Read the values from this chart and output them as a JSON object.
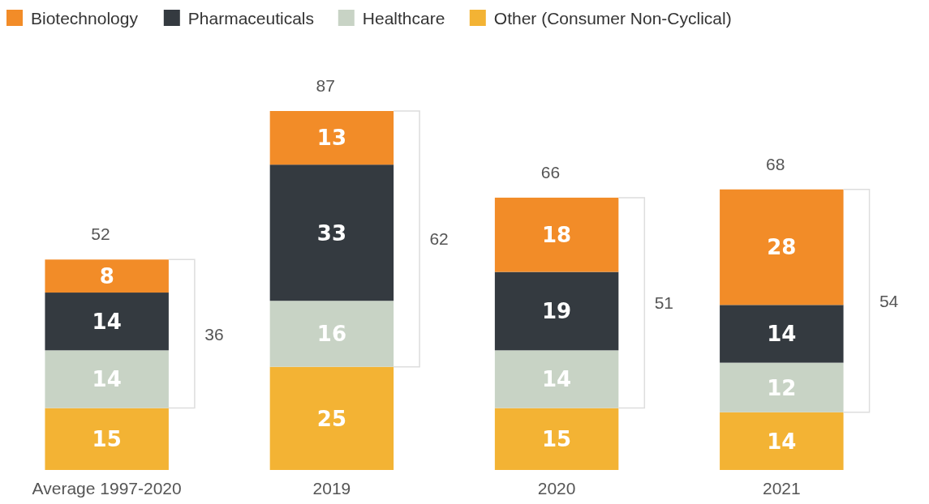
{
  "chart_data": {
    "type": "bar",
    "stacked": true,
    "categories": [
      "Average 1997-2020",
      "2019",
      "2020",
      "2021"
    ],
    "series": [
      {
        "name": "Other (Consumer Non-Cyclical)",
        "color": "#f3b334",
        "values": [
          15,
          25,
          15,
          14
        ]
      },
      {
        "name": "Healthcare",
        "color": "#c8d3c5",
        "values": [
          14,
          16,
          14,
          12
        ]
      },
      {
        "name": "Pharmaceuticals",
        "color": "#343a40",
        "values": [
          14,
          33,
          19,
          14
        ]
      },
      {
        "name": "Biotechnology",
        "color": "#f28c28",
        "values": [
          8,
          13,
          18,
          28
        ]
      }
    ],
    "data_labels": true,
    "totals": [
      "52",
      "87",
      "66",
      "68"
    ],
    "legend": "top left",
    "grid": false,
    "annotations": [
      "36",
      "62",
      "51",
      "54"
    ]
  }
}
